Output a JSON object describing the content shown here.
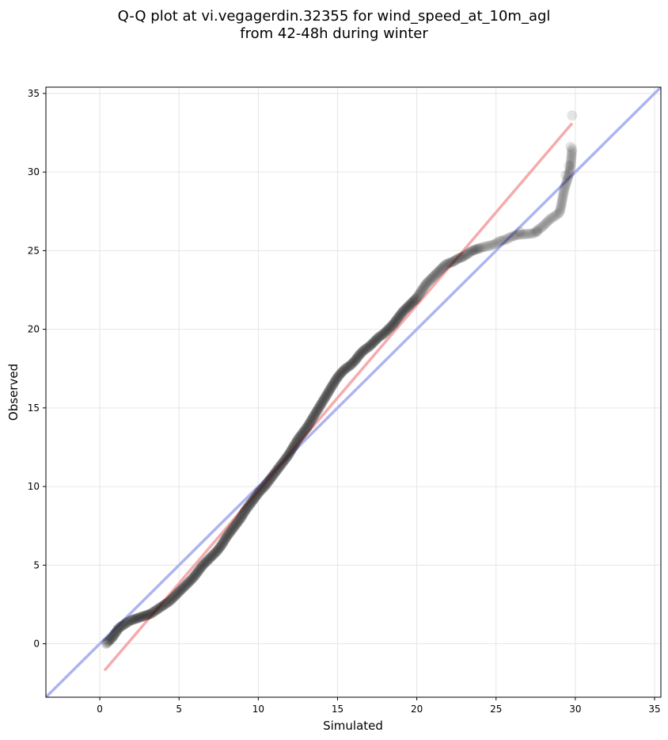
{
  "chart_data": {
    "type": "scatter",
    "title_lines": [
      "Q-Q plot at vi.vegagerdin.32355 for wind_speed_at_10m_agl",
      "from 42-48h during winter"
    ],
    "xlabel": "Simulated",
    "ylabel": "Observed",
    "xlim": [
      -3.4,
      35.4
    ],
    "ylim": [
      -3.4,
      35.4
    ],
    "xticks": [
      0,
      5,
      10,
      15,
      20,
      25,
      30,
      35
    ],
    "yticks": [
      0,
      5,
      10,
      15,
      20,
      25,
      30,
      35
    ],
    "tick_labels": [
      "0",
      "5",
      "10",
      "15",
      "20",
      "25",
      "30",
      "35"
    ],
    "grid": true,
    "series": [
      {
        "role": "quantiles",
        "color": "#000000",
        "x": [
          0.4,
          0.6,
          0.8,
          1.0,
          1.2,
          1.5,
          1.8,
          2.0,
          2.3,
          2.6,
          2.9,
          3.2,
          3.5,
          3.8,
          4.1,
          4.4,
          4.7,
          5.0,
          5.3,
          5.6,
          5.9,
          6.2,
          6.5,
          6.8,
          7.1,
          7.4,
          7.7,
          8.0,
          8.3,
          8.6,
          8.9,
          9.2,
          9.5,
          9.8,
          10.1,
          10.4,
          10.7,
          11.0,
          11.3,
          11.6,
          11.9,
          12.2,
          12.5,
          12.8,
          13.1,
          13.4,
          13.7,
          14.0,
          14.3,
          14.6,
          14.9,
          15.2,
          15.5,
          15.8,
          16.1,
          16.4,
          16.7,
          17.0,
          17.3,
          17.6,
          17.9,
          18.2,
          18.5,
          18.8,
          19.1,
          19.4,
          19.6,
          19.8,
          20.0,
          20.2,
          20.4,
          20.6,
          20.8,
          21.0,
          21.2,
          21.4,
          21.6,
          21.8,
          22.0,
          22.3,
          22.6,
          22.9,
          23.2,
          23.5,
          23.8,
          24.1,
          24.5,
          24.9,
          25.2,
          25.6,
          26.0,
          26.3,
          27.4,
          27.6,
          27.9,
          28.2,
          28.4,
          29.0,
          29.1,
          29.3,
          29.5,
          29.7,
          29.8
        ],
        "y": [
          0.0,
          0.2,
          0.4,
          0.7,
          1.0,
          1.2,
          1.4,
          1.5,
          1.6,
          1.7,
          1.8,
          1.9,
          2.1,
          2.3,
          2.5,
          2.7,
          3.0,
          3.3,
          3.6,
          3.9,
          4.2,
          4.6,
          5.0,
          5.3,
          5.6,
          5.9,
          6.3,
          6.8,
          7.2,
          7.6,
          8.0,
          8.5,
          8.9,
          9.3,
          9.7,
          10.0,
          10.4,
          10.8,
          11.2,
          11.6,
          12.0,
          12.5,
          13.0,
          13.4,
          13.8,
          14.3,
          14.8,
          15.3,
          15.8,
          16.3,
          16.8,
          17.2,
          17.5,
          17.7,
          18.0,
          18.4,
          18.7,
          18.9,
          19.2,
          19.5,
          19.7,
          20.0,
          20.3,
          20.7,
          21.1,
          21.4,
          21.6,
          21.8,
          22.0,
          22.3,
          22.6,
          22.9,
          23.1,
          23.3,
          23.5,
          23.7,
          23.9,
          24.1,
          24.2,
          24.3,
          24.5,
          24.6,
          24.8,
          25.0,
          25.1,
          25.2,
          25.3,
          25.4,
          25.6,
          25.7,
          25.9,
          26.0,
          26.1,
          26.3,
          26.5,
          26.8,
          27.0,
          27.4,
          27.8,
          28.9,
          29.5,
          30.3,
          31.5
        ]
      },
      {
        "role": "least-squares fit",
        "color": "#f4a6a8",
        "x": [
          0.3,
          29.8
        ],
        "y": [
          -1.7,
          33.1
        ]
      },
      {
        "role": "one-to-one line",
        "color": "#aab0f0",
        "x": [
          -3.4,
          35.4
        ],
        "y": [
          -3.4,
          35.4
        ]
      }
    ],
    "upper_tail_points": [
      {
        "x": 29.8,
        "y": 33.6
      },
      {
        "x": 29.7,
        "y": 31.6
      },
      {
        "x": 29.6,
        "y": 30.4
      },
      {
        "x": 29.4,
        "y": 29.8
      },
      {
        "x": 27.6,
        "y": 26.2
      },
      {
        "x": 26.5,
        "y": 26.2
      }
    ]
  }
}
